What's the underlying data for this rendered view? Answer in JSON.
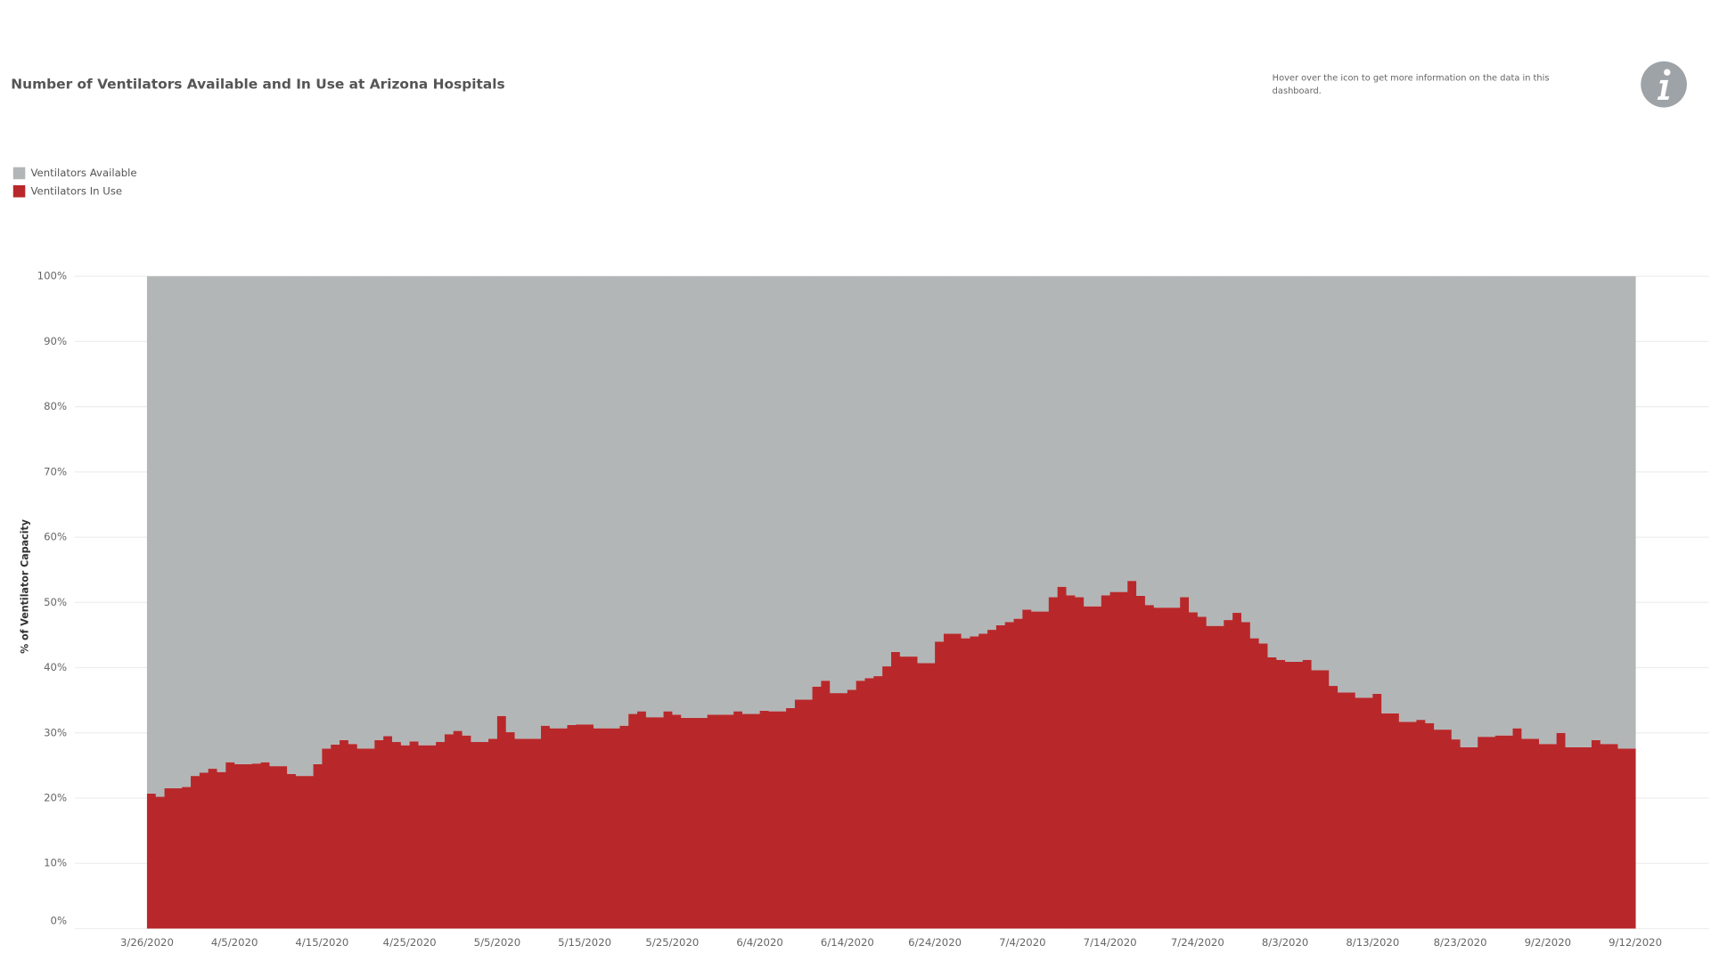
{
  "chart_data": {
    "type": "stacked_bar",
    "title": "Number of Ventilators Available and In Use at Arizona Hospitals",
    "y_label": "% of Ventilator Capacity",
    "ylim": [
      0,
      100
    ],
    "yticks": [
      {
        "value": 0,
        "label": "0%"
      },
      {
        "value": 10,
        "label": "10%"
      },
      {
        "value": 20,
        "label": "20%"
      },
      {
        "value": 30,
        "label": "30%"
      },
      {
        "value": 40,
        "label": "40%"
      },
      {
        "value": 50,
        "label": "50%"
      },
      {
        "value": 60,
        "label": "60%"
      },
      {
        "value": 70,
        "label": "70%"
      },
      {
        "value": 80,
        "label": "80%"
      },
      {
        "value": 90,
        "label": "90%"
      },
      {
        "value": 100,
        "label": "100%"
      }
    ],
    "grid": true,
    "legend": "top-left",
    "categories": [
      "3/26/2020",
      null,
      null,
      null,
      null,
      null,
      null,
      null,
      null,
      null,
      "4/5/2020",
      null,
      null,
      null,
      null,
      null,
      null,
      null,
      null,
      null,
      "4/15/2020",
      null,
      null,
      null,
      null,
      null,
      null,
      null,
      null,
      null,
      "4/25/2020",
      null,
      null,
      null,
      null,
      null,
      null,
      null,
      null,
      null,
      "5/5/2020",
      null,
      null,
      null,
      null,
      null,
      null,
      null,
      null,
      null,
      "5/15/2020",
      null,
      null,
      null,
      null,
      null,
      null,
      null,
      null,
      null,
      "5/25/2020",
      null,
      null,
      null,
      null,
      null,
      null,
      null,
      null,
      null,
      "6/4/2020",
      null,
      null,
      null,
      null,
      null,
      null,
      null,
      null,
      null,
      "6/14/2020",
      null,
      null,
      null,
      null,
      null,
      null,
      null,
      null,
      null,
      "6/24/2020",
      null,
      null,
      null,
      null,
      null,
      null,
      null,
      null,
      null,
      "7/4/2020",
      null,
      null,
      null,
      null,
      null,
      null,
      null,
      null,
      null,
      "7/14/2020",
      null,
      null,
      null,
      null,
      null,
      null,
      null,
      null,
      null,
      "7/24/2020",
      null,
      null,
      null,
      null,
      null,
      null,
      null,
      null,
      null,
      "8/3/2020",
      null,
      null,
      null,
      null,
      null,
      null,
      null,
      null,
      null,
      "8/13/2020",
      null,
      null,
      null,
      null,
      null,
      null,
      null,
      null,
      null,
      "8/23/2020",
      null,
      null,
      null,
      null,
      null,
      null,
      null,
      null,
      null,
      "9/2/2020",
      null,
      null,
      null,
      null,
      null,
      null,
      null,
      null,
      null,
      "9/12/2020"
    ],
    "series": [
      {
        "name": "Ventilators Available",
        "color": "#b3b6b7",
        "values": [
          79.3,
          79.8,
          78.5,
          78.5,
          78.3,
          76.6,
          76.1,
          75.5,
          76.0,
          74.5,
          74.8,
          74.8,
          74.7,
          74.5,
          75.1,
          75.1,
          76.3,
          76.6,
          76.6,
          74.8,
          72.4,
          71.8,
          71.1,
          71.7,
          72.4,
          72.4,
          71.1,
          70.5,
          71.4,
          71.9,
          71.3,
          71.9,
          71.9,
          71.4,
          70.2,
          69.7,
          70.4,
          71.4,
          71.4,
          70.9,
          67.4,
          69.9,
          70.9,
          70.9,
          70.9,
          68.9,
          69.3,
          69.3,
          68.8,
          68.7,
          68.7,
          69.3,
          69.3,
          69.3,
          68.9,
          67.1,
          66.7,
          67.6,
          67.6,
          66.7,
          67.2,
          67.7,
          67.7,
          67.7,
          67.2,
          67.2,
          67.2,
          66.7,
          67.1,
          67.1,
          66.6,
          66.7,
          66.7,
          66.2,
          64.9,
          64.9,
          62.9,
          62.0,
          63.9,
          63.9,
          63.4,
          62.0,
          61.6,
          61.3,
          59.8,
          57.6,
          58.3,
          58.3,
          59.3,
          59.3,
          56.0,
          54.8,
          54.8,
          55.5,
          55.2,
          54.8,
          54.2,
          53.5,
          53.0,
          52.5,
          51.1,
          51.4,
          51.4,
          49.2,
          47.6,
          48.9,
          49.2,
          50.6,
          50.6,
          48.9,
          48.4,
          48.4,
          46.7,
          49.0,
          50.4,
          50.8,
          50.8,
          50.8,
          49.2,
          51.5,
          52.2,
          53.6,
          53.6,
          52.7,
          51.6,
          53.0,
          55.5,
          56.3,
          58.4,
          58.8,
          59.1,
          59.1,
          58.8,
          60.4,
          60.4,
          62.8,
          63.8,
          63.8,
          64.6,
          64.6,
          64.0,
          67.0,
          67.0,
          68.3,
          68.3,
          68.0,
          68.5,
          69.5,
          69.5,
          71.0,
          72.2,
          72.2,
          70.6,
          70.6,
          70.4,
          70.4,
          69.3,
          70.9,
          70.9,
          71.7,
          71.7,
          70.0,
          72.2,
          72.2,
          72.2,
          71.1,
          71.7,
          71.7,
          72.4,
          72.4,
          null
        ]
      },
      {
        "name": "Ventilators In Use",
        "color": "#b8282a",
        "values": [
          20.7,
          20.2,
          21.5,
          21.5,
          21.7,
          23.4,
          23.9,
          24.5,
          24.0,
          25.5,
          25.2,
          25.2,
          25.3,
          25.5,
          24.9,
          24.9,
          23.7,
          23.4,
          23.4,
          25.2,
          27.6,
          28.2,
          28.9,
          28.3,
          27.6,
          27.6,
          28.9,
          29.5,
          28.6,
          28.1,
          28.7,
          28.1,
          28.1,
          28.6,
          29.8,
          30.3,
          29.6,
          28.6,
          28.6,
          29.1,
          32.6,
          30.1,
          29.1,
          29.1,
          29.1,
          31.1,
          30.7,
          30.7,
          31.2,
          31.3,
          31.3,
          30.7,
          30.7,
          30.7,
          31.1,
          32.9,
          33.3,
          32.4,
          32.4,
          33.3,
          32.8,
          32.3,
          32.3,
          32.3,
          32.8,
          32.8,
          32.8,
          33.3,
          32.9,
          32.9,
          33.4,
          33.3,
          33.3,
          33.8,
          35.1,
          35.1,
          37.1,
          38.0,
          36.1,
          36.1,
          36.6,
          38.0,
          38.4,
          38.7,
          40.2,
          42.4,
          41.7,
          41.7,
          40.7,
          40.7,
          44.0,
          45.2,
          45.2,
          44.5,
          44.8,
          45.2,
          45.8,
          46.5,
          47.0,
          47.5,
          48.9,
          48.6,
          48.6,
          50.8,
          52.4,
          51.1,
          50.8,
          49.4,
          49.4,
          51.1,
          51.6,
          51.6,
          53.3,
          51.0,
          49.6,
          49.2,
          49.2,
          49.2,
          50.8,
          48.5,
          47.8,
          46.4,
          46.4,
          47.3,
          48.4,
          47.0,
          44.5,
          43.7,
          41.6,
          41.2,
          40.9,
          40.9,
          41.2,
          39.6,
          39.6,
          37.2,
          36.2,
          36.2,
          35.4,
          35.4,
          36.0,
          33.0,
          33.0,
          31.7,
          31.7,
          32.0,
          31.5,
          30.5,
          30.5,
          29.0,
          27.8,
          27.8,
          29.4,
          29.4,
          29.6,
          29.6,
          30.7,
          29.1,
          29.1,
          28.3,
          28.3,
          30.0,
          27.8,
          27.8,
          27.8,
          28.9,
          28.3,
          28.3,
          27.6,
          27.6,
          null
        ]
      }
    ]
  },
  "info_text": [
    "Hover over the icon to get more information on the data in this",
    "dashboard."
  ]
}
